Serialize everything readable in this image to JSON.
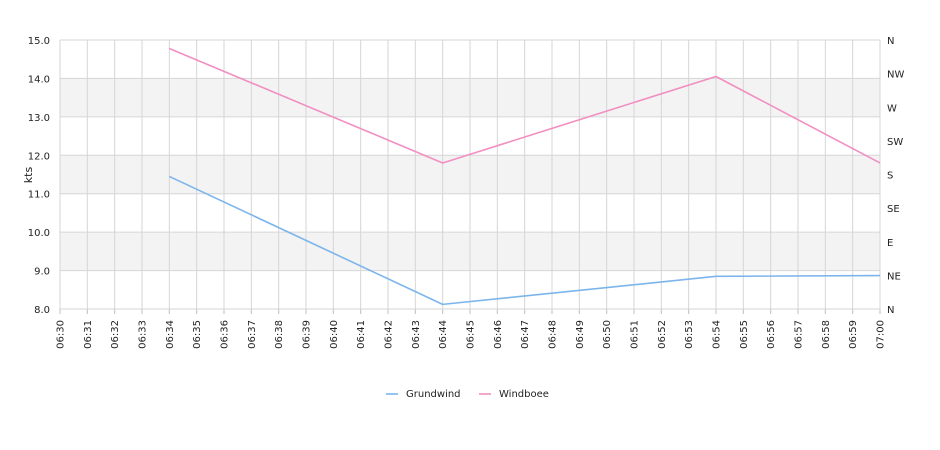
{
  "chart_data": {
    "type": "line",
    "xlabel": "",
    "ylabel": "kts",
    "ylim": [
      8.0,
      15.0
    ],
    "y_ticks": [
      "8.0",
      "9.0",
      "10.0",
      "11.0",
      "12.0",
      "13.0",
      "14.0",
      "15.0"
    ],
    "y2_ticks": [
      "N",
      "NE",
      "E",
      "SE",
      "S",
      "SW",
      "W",
      "NW",
      "N"
    ],
    "x": [
      "06:30",
      "06:31",
      "06:32",
      "06:33",
      "06:34",
      "06:35",
      "06:36",
      "06:37",
      "06:38",
      "06:39",
      "06:40",
      "06:41",
      "06:42",
      "06:43",
      "06:44",
      "06:45",
      "06:46",
      "06:47",
      "06:48",
      "06:49",
      "06:50",
      "06:51",
      "06:52",
      "06:53",
      "06:54",
      "06:55",
      "06:56",
      "06:57",
      "06:58",
      "06:59",
      "07:00"
    ],
    "series": [
      {
        "name": "Grundwind",
        "color": "#7cb5ec",
        "points": [
          [
            "06:34",
            11.45
          ],
          [
            "06:44",
            8.12
          ],
          [
            "06:54",
            8.85
          ],
          [
            "07:00",
            8.87
          ]
        ]
      },
      {
        "name": "Windboee",
        "color": "#f28fc2",
        "points": [
          [
            "06:34",
            14.78
          ],
          [
            "06:44",
            11.8
          ],
          [
            "06:54",
            14.05
          ],
          [
            "07:00",
            11.8
          ]
        ]
      }
    ],
    "bands": {
      "colors": [
        "#ffffff",
        "#f3f3f3"
      ]
    },
    "grid": true,
    "legend_position": "bottom-center"
  }
}
